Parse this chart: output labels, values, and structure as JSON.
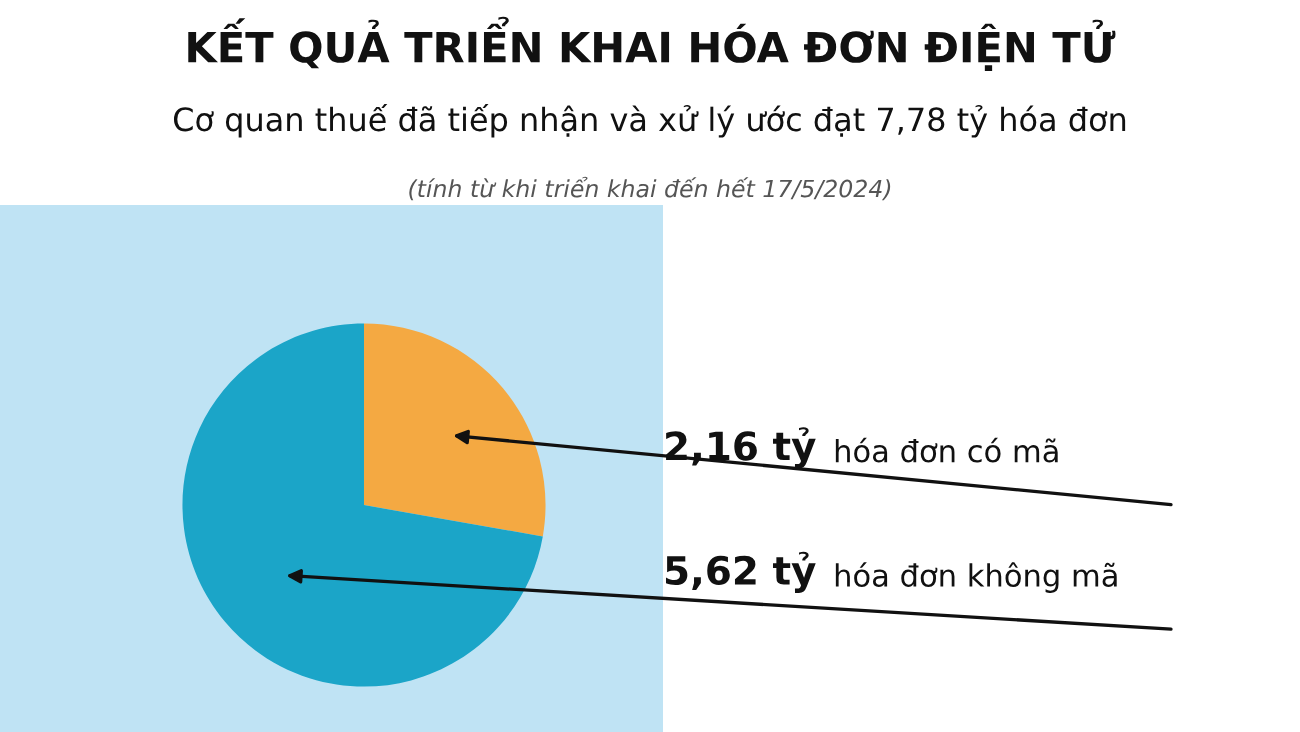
{
  "chart_data": {
    "type": "pie",
    "title": "KẾT QUẢ TRIỂN KHAI HÓA ĐƠN ĐIỆN TỬ",
    "subtitle": "Cơ quan thuế đã tiếp nhận và xử lý ước đạt 7,78 tỷ hóa đơn",
    "annotations": [
      "(tính từ khi triển khai đến hết 17/5/2024)"
    ],
    "categories": [
      "hóa đơn có mã",
      "hóa đơn không mã"
    ],
    "values": [
      2.16,
      5.62
    ],
    "value_labels": [
      "2,16 tỷ",
      "5,62 tỷ"
    ],
    "colors": [
      "#f4a942",
      "#1ba5c8"
    ]
  }
}
